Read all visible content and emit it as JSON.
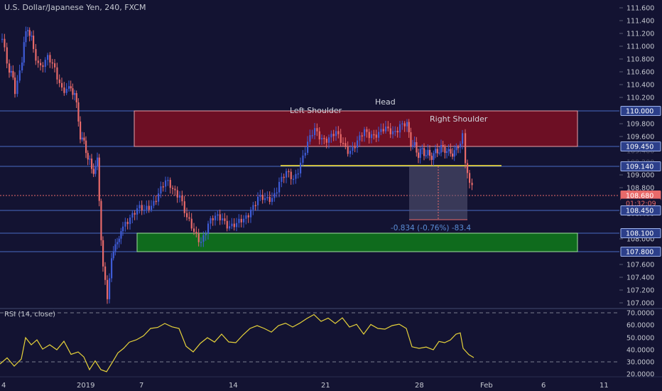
{
  "header": {
    "symbol_title": "U.S. Dollar/Japanese Yen, 240, FXCM"
  },
  "annotations": {
    "left_shoulder": "Left Shoulder",
    "head": "Head",
    "right_shoulder": "Right Shoulder",
    "measure": "-0.834 (-0.76%) -83.4"
  },
  "price_axis": {
    "ticks": [
      "111.600",
      "111.400",
      "111.200",
      "111.000",
      "110.800",
      "110.600",
      "110.400",
      "110.200",
      "109.800",
      "109.600",
      "109.000",
      "108.800",
      "108.400",
      "108.000",
      "107.600",
      "107.400",
      "107.200",
      "107.000"
    ],
    "ghost_ticks": [
      "109.400",
      "109.200"
    ]
  },
  "price_tags": [
    {
      "label": "110.000",
      "style": "outline"
    },
    {
      "label": "109.450",
      "style": "outline"
    },
    {
      "label": "109.140",
      "style": "outline"
    },
    {
      "label": "108.680",
      "style": "current"
    },
    {
      "label": "01:32:09",
      "style": "countdown"
    },
    {
      "label": "108.450",
      "style": "outline"
    },
    {
      "label": "108.100",
      "style": "outline"
    },
    {
      "label": "107.800",
      "style": "outline"
    }
  ],
  "rsi": {
    "title": "RSI (14, close)",
    "ticks": [
      "70.0000",
      "60.0000",
      "50.0000",
      "40.0000",
      "30.0000",
      "20.0000"
    ]
  },
  "time_axis": {
    "labels": [
      "4",
      "2019",
      "7",
      "14",
      "21",
      "28",
      "Feb",
      "6",
      "11"
    ]
  },
  "colors": {
    "background": "#131332",
    "up_candle": "#3e5bd6",
    "down_candle": "#e86a6a",
    "resistance_zone": "#6d0f24",
    "support_zone": "#0f6b1d",
    "neckline": "#e6d23a",
    "rsi_line": "#e6d23a",
    "current_price": "#e86a6a"
  }
}
